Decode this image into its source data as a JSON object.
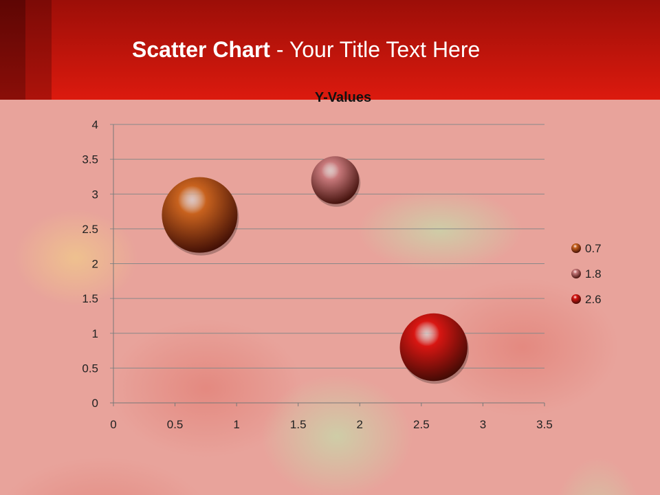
{
  "slide": {
    "title_bold": "Scatter Chart",
    "title_rest": " - Your Title Text Here"
  },
  "chart_data": {
    "type": "bubble",
    "title": "Y-Values",
    "x": [
      0.7,
      1.8,
      2.6
    ],
    "y": [
      2.7,
      3.2,
      0.8
    ],
    "sizes": [
      10,
      4,
      8
    ],
    "colors": [
      "#c8621e",
      "#c7787a",
      "#d81612"
    ],
    "legend": [
      "0.7",
      "1.8",
      "2.6"
    ],
    "legend_position": "right",
    "xlim": [
      0,
      3.5
    ],
    "ylim": [
      0,
      4
    ],
    "xticks": [
      "0",
      "0.5",
      "1",
      "1.5",
      "2",
      "2.5",
      "3",
      "3.5"
    ],
    "yticks": [
      "0",
      "0.5",
      "1",
      "1.5",
      "2",
      "2.5",
      "3",
      "3.5",
      "4"
    ],
    "grid": "horizontal"
  }
}
